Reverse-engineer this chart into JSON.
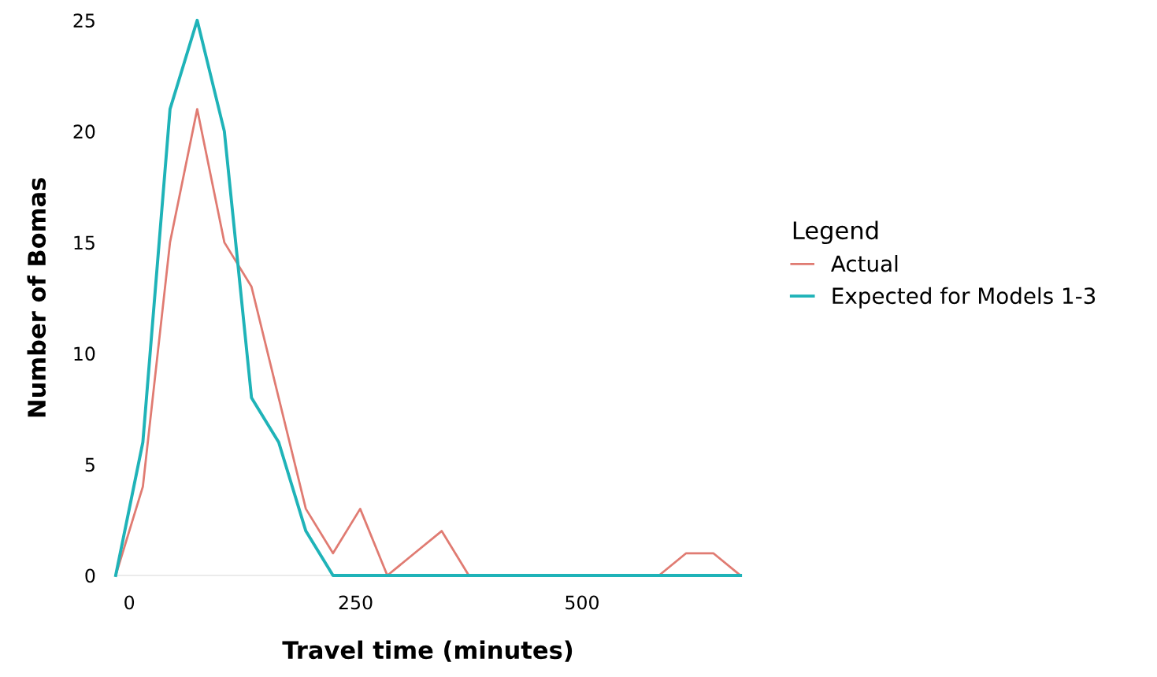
{
  "chart_data": {
    "type": "line",
    "xlabel": "Travel time (minutes)",
    "ylabel": "Number of Bomas",
    "legend_title": "Legend",
    "legend": "right",
    "x": [
      -15,
      15,
      45,
      75,
      105,
      135,
      165,
      195,
      225,
      255,
      285,
      315,
      345,
      375,
      405,
      435,
      465,
      495,
      525,
      555,
      585,
      615,
      645,
      675
    ],
    "series": [
      {
        "name": "Actual",
        "color": "#e07b72",
        "values": [
          0,
          4,
          15,
          21,
          15,
          13,
          8,
          3,
          1,
          3,
          0,
          1,
          2,
          0,
          0,
          0,
          0,
          0,
          0,
          0,
          0,
          1,
          1,
          0
        ]
      },
      {
        "name": "Expected for Models 1-3",
        "color": "#1fb3b8",
        "values": [
          0,
          6,
          21,
          25,
          20,
          8,
          6,
          2,
          0,
          0,
          0,
          0,
          0,
          0,
          0,
          0,
          0,
          0,
          0,
          0,
          0,
          0,
          0,
          0
        ]
      }
    ],
    "xlim": [
      -15,
      675
    ],
    "xticks": [
      0,
      250,
      500
    ],
    "ylim": [
      0,
      25
    ],
    "yticks": [
      0,
      5,
      10,
      15,
      20,
      25
    ],
    "grid": false,
    "marker": "none",
    "line_style": "solid"
  }
}
